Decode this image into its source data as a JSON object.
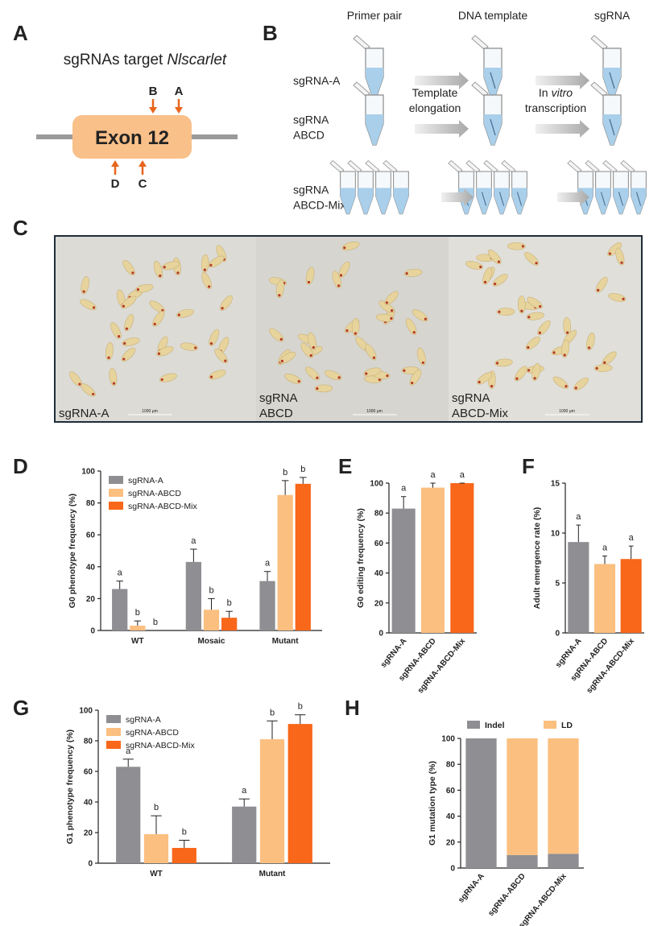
{
  "panel_labels": [
    "A",
    "B",
    "C",
    "D",
    "E",
    "F",
    "G",
    "H"
  ],
  "panel_a": {
    "title": "sgRNAs target",
    "title_italic": "Nlscarlet",
    "exon": "Exon 12",
    "sites_top": [
      "B",
      "A"
    ],
    "sites_bottom": [
      "D",
      "C"
    ]
  },
  "panel_b": {
    "columns": [
      "Primer pair",
      "DNA template",
      "sgRNA"
    ],
    "rows": [
      [
        "sgRNA-A"
      ],
      [
        "sgRNA",
        "ABCD"
      ],
      [
        "sgRNA",
        "ABCD-Mix"
      ]
    ],
    "steps": [
      {
        "line1": [
          "Template"
        ],
        "line2": "elongation"
      },
      {
        "line1": [
          "In",
          "vitro"
        ],
        "line2": "transcription"
      }
    ]
  },
  "panel_c": {
    "labels": [
      [
        "sgRNA-A"
      ],
      [
        "sgRNA",
        "ABCD"
      ],
      [
        "sgRNA",
        "ABCD-Mix"
      ]
    ],
    "scale_bar": "1000 μm"
  },
  "chart_data": [
    {
      "type": "bar",
      "ylabel": "G0  phenotype frequency (%)",
      "categories": [
        "WT",
        "Mosaic",
        "Mutant"
      ],
      "series": [
        {
          "name": "sgRNA-A",
          "color": "#8e8e93",
          "values": [
            26,
            43,
            31
          ],
          "errors": [
            5,
            8,
            6
          ],
          "letters": [
            "a",
            "a",
            "a"
          ]
        },
        {
          "name": "sgRNA-ABCD",
          "color": "#fbbf80",
          "values": [
            3,
            13,
            85
          ],
          "errors": [
            3,
            7,
            9
          ],
          "letters": [
            "b",
            "b",
            "b"
          ]
        },
        {
          "name": "sgRNA-ABCD-Mix",
          "color": "#f8671a",
          "values": [
            0,
            8,
            92
          ],
          "errors": [
            0,
            4,
            4
          ],
          "letters": [
            "b",
            "b",
            "b"
          ]
        }
      ],
      "ylim": [
        0,
        100
      ],
      "yticks": [
        0,
        20,
        40,
        60,
        80,
        100
      ],
      "legend": "top-left"
    },
    {
      "type": "bar",
      "ylabel": "G0 editing frequency (%)",
      "categories": [
        "sgRNA-A",
        "sgRNA-ABCD",
        "sgRNA-ABCD-Mix"
      ],
      "values": [
        83,
        97,
        100
      ],
      "errors": [
        8,
        3,
        0
      ],
      "letters": [
        "a",
        "a",
        "a"
      ],
      "colors": [
        "#8e8e93",
        "#fbbf80",
        "#f8671a"
      ],
      "ylim": [
        0,
        100
      ],
      "yticks": [
        0,
        20,
        40,
        60,
        80,
        100
      ]
    },
    {
      "type": "bar",
      "ylabel": "Adult emergence rate (%)",
      "categories": [
        "sgRNA-A",
        "sgRNA-ABCD",
        "sgRNA-ABCD-Mix"
      ],
      "values": [
        9.1,
        6.9,
        7.4
      ],
      "errors": [
        1.7,
        0.8,
        1.3
      ],
      "letters": [
        "a",
        "a",
        "a"
      ],
      "colors": [
        "#8e8e93",
        "#fbbf80",
        "#f8671a"
      ],
      "ylim": [
        0,
        15
      ],
      "yticks": [
        0,
        5,
        10,
        15
      ]
    },
    {
      "type": "bar",
      "ylabel": "G1  phenotype frequency (%)",
      "categories": [
        "WT",
        "Mutant"
      ],
      "series": [
        {
          "name": "sgRNA-A",
          "color": "#8e8e93",
          "values": [
            63,
            37
          ],
          "errors": [
            5,
            5
          ],
          "letters": [
            "a",
            "a"
          ]
        },
        {
          "name": "sgRNA-ABCD",
          "color": "#fbbf80",
          "values": [
            19,
            81
          ],
          "errors": [
            12,
            12
          ],
          "letters": [
            "b",
            "b"
          ]
        },
        {
          "name": "sgRNA-ABCD-Mix",
          "color": "#f8671a",
          "values": [
            10,
            91
          ],
          "errors": [
            5,
            6
          ],
          "letters": [
            "b",
            "b"
          ]
        }
      ],
      "ylim": [
        0,
        100
      ],
      "yticks": [
        0,
        20,
        40,
        60,
        80,
        100
      ],
      "legend": "top-left"
    },
    {
      "type": "stacked_bar",
      "ylabel": "G1 mutation type (%)",
      "categories": [
        "sgRNA-A",
        "sgRNA-ABCD",
        "sgRNA-ABCD-Mix"
      ],
      "series": [
        {
          "name": "Indel",
          "color": "#8e8e93",
          "values": [
            100,
            10,
            11
          ]
        },
        {
          "name": "LD",
          "color": "#fbbf80",
          "values": [
            0,
            90,
            89
          ]
        }
      ],
      "ylim": [
        0,
        100
      ],
      "yticks": [
        0,
        20,
        40,
        60,
        80,
        100
      ],
      "legend": "top"
    }
  ]
}
